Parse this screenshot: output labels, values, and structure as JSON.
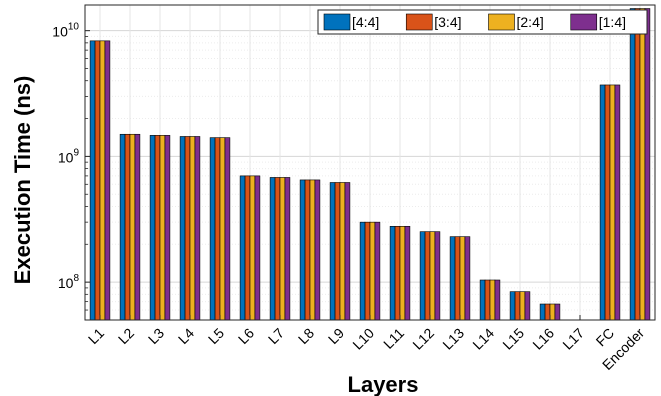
{
  "chart_data": {
    "type": "bar",
    "xlabel": "Layers",
    "ylabel": "Execution Time (ns)",
    "yscale": "log",
    "ylim": [
      50000000,
      16000000000
    ],
    "yticks": [
      {
        "value": 100000000,
        "base": "10",
        "exp": "8"
      },
      {
        "value": 1000000000,
        "base": "10",
        "exp": "9"
      },
      {
        "value": 10000000000,
        "base": "10",
        "exp": "10"
      }
    ],
    "grid": true,
    "legend_position": "top-right",
    "categories": [
      "L1",
      "L2",
      "L3",
      "L4",
      "L5",
      "L6",
      "L7",
      "L8",
      "L9",
      "L10",
      "L11",
      "L12",
      "L13",
      "L14",
      "L15",
      "L16",
      "L17",
      "FC",
      "Encoder"
    ],
    "series": [
      {
        "name": "[4:4]",
        "color": "#0072BD",
        "values": [
          8300000000,
          1500000000,
          1470000000,
          1440000000,
          1410000000,
          700000000,
          680000000,
          650000000,
          620000000,
          300000000,
          278000000,
          252000000,
          230000000,
          104000000,
          84000000,
          67000000,
          null,
          3700000000,
          15000000000
        ]
      },
      {
        "name": "[3:4]",
        "color": "#D95319",
        "values": [
          8300000000,
          1500000000,
          1470000000,
          1440000000,
          1410000000,
          700000000,
          680000000,
          650000000,
          620000000,
          300000000,
          278000000,
          252000000,
          230000000,
          104000000,
          84000000,
          67000000,
          null,
          3700000000,
          15000000000
        ]
      },
      {
        "name": "[2:4]",
        "color": "#EDB120",
        "values": [
          8300000000,
          1500000000,
          1470000000,
          1440000000,
          1410000000,
          700000000,
          680000000,
          650000000,
          620000000,
          300000000,
          278000000,
          252000000,
          230000000,
          104000000,
          84000000,
          67000000,
          null,
          3700000000,
          15000000000
        ]
      },
      {
        "name": "[1:4]",
        "color": "#7E2F8E",
        "values": [
          8300000000,
          1500000000,
          1470000000,
          1440000000,
          1410000000,
          700000000,
          680000000,
          650000000,
          620000000,
          300000000,
          278000000,
          252000000,
          230000000,
          104000000,
          84000000,
          67000000,
          null,
          3700000000,
          15000000000
        ]
      }
    ]
  }
}
